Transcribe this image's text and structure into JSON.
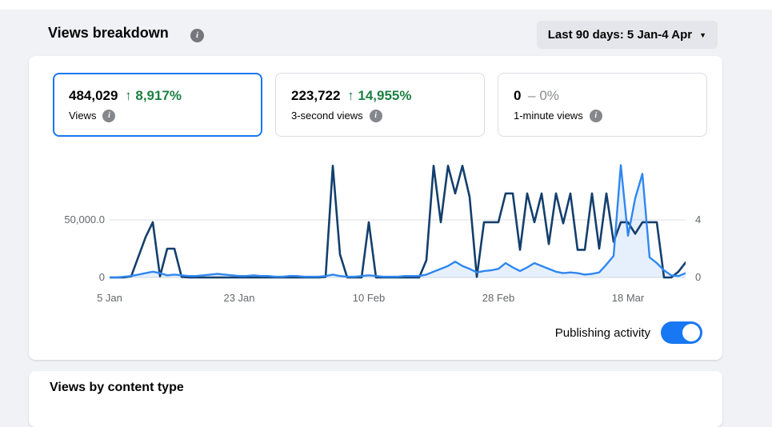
{
  "header": {
    "title": "Views breakdown",
    "date_range_label": "Last 90 days: 5 Jan-4 Apr",
    "caret": "▼"
  },
  "stats": [
    {
      "value": "484,029",
      "delta": "↑ 8,917%",
      "delta_type": "positive",
      "label": "Views",
      "selected": true
    },
    {
      "value": "223,722",
      "delta": "↑ 14,955%",
      "delta_type": "positive",
      "label": "3-second views",
      "selected": false
    },
    {
      "value": "0",
      "delta": "– 0%",
      "delta_type": "neutral",
      "label": "1-minute views",
      "selected": false
    }
  ],
  "chart_data": {
    "type": "line",
    "title": "Views breakdown over time",
    "x_axis": {
      "tick_labels": [
        "5 Jan",
        "23 Jan",
        "10 Feb",
        "28 Feb",
        "18 Mar"
      ],
      "tick_day_index": [
        0,
        18,
        36,
        54,
        72
      ],
      "total_days": 80,
      "range_label": "5 Jan-4 Apr"
    },
    "left_axis": {
      "series": "Views",
      "ticks": [
        "50,000.0",
        "0"
      ],
      "gridline_value": 50000
    },
    "right_axis": {
      "series": "Publishing activity",
      "ticks": [
        "4",
        "0"
      ],
      "gridline_value": 4
    },
    "grid": "one horizontal gridline at 50,000 (left) / 4 (right) plus zero baseline",
    "legend_position": "none",
    "series": [
      {
        "name": "Views",
        "axis": "left",
        "color": "#143f6d",
        "fill": false,
        "values": [
          0,
          0,
          0,
          1000,
          18000,
          35000,
          48000,
          1000,
          25000,
          25000,
          500,
          0,
          0,
          0,
          0,
          0,
          0,
          0,
          0,
          0,
          0,
          0,
          0,
          0,
          0,
          0,
          0,
          0,
          0,
          0,
          500,
          97000,
          20000,
          0,
          0,
          0,
          48000,
          0,
          0,
          0,
          0,
          0,
          0,
          0,
          15000,
          97000,
          48000,
          97000,
          73000,
          97000,
          70000,
          500,
          48000,
          48000,
          48000,
          73000,
          73000,
          24000,
          73000,
          48000,
          73000,
          29000,
          73000,
          47000,
          73000,
          24000,
          24000,
          73000,
          25000,
          73000,
          31000,
          48000,
          48000,
          38000,
          48000,
          48000,
          48000,
          0,
          0,
          5000,
          13000
        ]
      },
      {
        "name": "Publishing activity",
        "axis": "right",
        "color": "#2f87f0",
        "fill": true,
        "fill_color": "rgba(47,135,240,0.12)",
        "values": [
          0,
          0,
          0.05,
          0.1,
          0.2,
          0.3,
          0.4,
          0.3,
          0.15,
          0.2,
          0.15,
          0.1,
          0.1,
          0.15,
          0.2,
          0.25,
          0.2,
          0.15,
          0.1,
          0.1,
          0.15,
          0.1,
          0.1,
          0.05,
          0.05,
          0.1,
          0.1,
          0.05,
          0.05,
          0.05,
          0.1,
          0.2,
          0.1,
          0.05,
          0.05,
          0.1,
          0.15,
          0.1,
          0.05,
          0.05,
          0.05,
          0.1,
          0.1,
          0.1,
          0.2,
          0.4,
          0.6,
          0.8,
          1.1,
          0.8,
          0.6,
          0.35,
          0.45,
          0.5,
          0.6,
          1.0,
          0.7,
          0.45,
          0.7,
          1.0,
          0.8,
          0.6,
          0.4,
          0.3,
          0.35,
          0.3,
          0.2,
          0.25,
          0.35,
          0.9,
          1.5,
          7.8,
          2.9,
          5.5,
          7.2,
          1.4,
          1.0,
          0.5,
          0.15,
          0.1,
          0.3
        ]
      }
    ]
  },
  "toggle": {
    "label": "Publishing activity",
    "state": "on"
  },
  "section2": {
    "title": "Views by content type"
  },
  "colors": {
    "background": "#f0f2f5",
    "card": "#ffffff",
    "views_line": "#143f6d",
    "publishing_line": "#2f87f0",
    "publishing_fill": "rgba(47,135,240,0.12)",
    "positive_green": "#1d8042",
    "accent_blue": "#1877f2",
    "secondary_text": "#65676b",
    "gridline": "#dadde1"
  }
}
